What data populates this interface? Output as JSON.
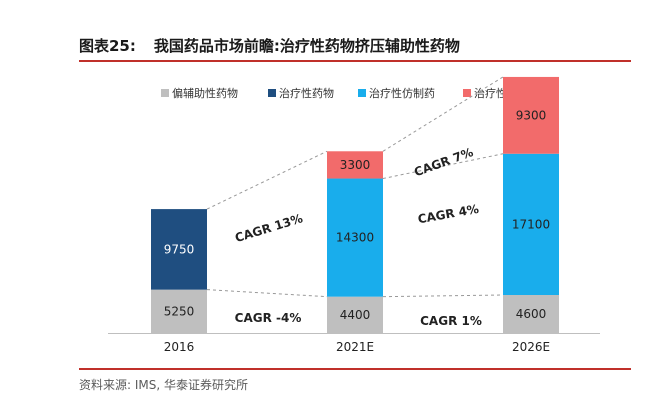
{
  "figure": {
    "number": "图表25:",
    "title": "我国药品市场前瞻:治疗性药物挤压辅助性药物",
    "source": "资料来源: IMS, 华泰证券研究所"
  },
  "chart_data": {
    "type": "bar",
    "stacked": true,
    "categories": [
      "2016",
      "2021E",
      "2026E"
    ],
    "series": [
      {
        "name": "偏辅助性药物",
        "color": "#bfbfbf",
        "values": [
          5250,
          4400,
          4600
        ]
      },
      {
        "name": "治疗性药物",
        "color": "#1f4e80",
        "values": [
          9750,
          null,
          null
        ]
      },
      {
        "name": "治疗性仿制药",
        "color": "#19adec",
        "values": [
          null,
          14300,
          17100
        ]
      },
      {
        "name": "治疗性创新药",
        "color": "#f26b6b",
        "values": [
          null,
          3300,
          9300
        ]
      }
    ],
    "legend": "top",
    "annotations": [
      {
        "text": "CAGR 13%",
        "from": "2016",
        "to": "2021E"
      },
      {
        "text": "CAGR -4%",
        "from": "2016",
        "to": "2021E"
      },
      {
        "text": "CAGR 7%",
        "from": "2021E",
        "to": "2026E"
      },
      {
        "text": "CAGR 4%",
        "from": "2021E",
        "to": "2026E"
      },
      {
        "text": "CAGR 1%",
        "from": "2021E",
        "to": "2026E"
      }
    ],
    "grid": false
  }
}
